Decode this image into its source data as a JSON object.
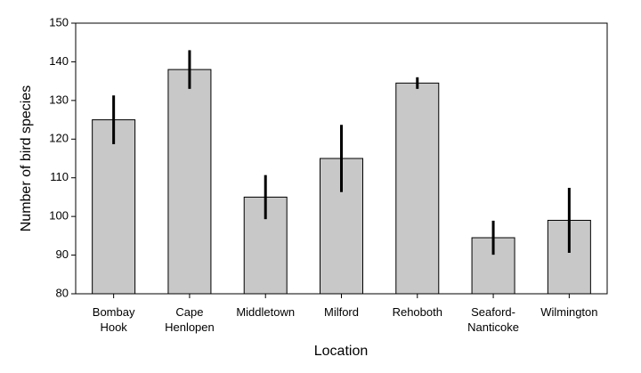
{
  "chart_data": {
    "type": "bar",
    "categories": [
      [
        "Bombay",
        "Hook"
      ],
      [
        "Cape",
        "Henlopen"
      ],
      [
        "Middletown"
      ],
      [
        "Milford"
      ],
      [
        "Rehoboth"
      ],
      [
        "Seaford-",
        "Nanticoke"
      ],
      [
        "Wilmington"
      ]
    ],
    "values": [
      125,
      138,
      105,
      115,
      134.5,
      94.5,
      99
    ],
    "errors": [
      6.3,
      5,
      5.7,
      8.7,
      1.5,
      4.4,
      8.4
    ],
    "color": "#c8c8c8",
    "xlabel": "Location",
    "ylabel": "Number of bird species",
    "ylim": [
      80,
      150
    ],
    "yticks": [
      80,
      90,
      100,
      110,
      120,
      130,
      140,
      150
    ]
  }
}
